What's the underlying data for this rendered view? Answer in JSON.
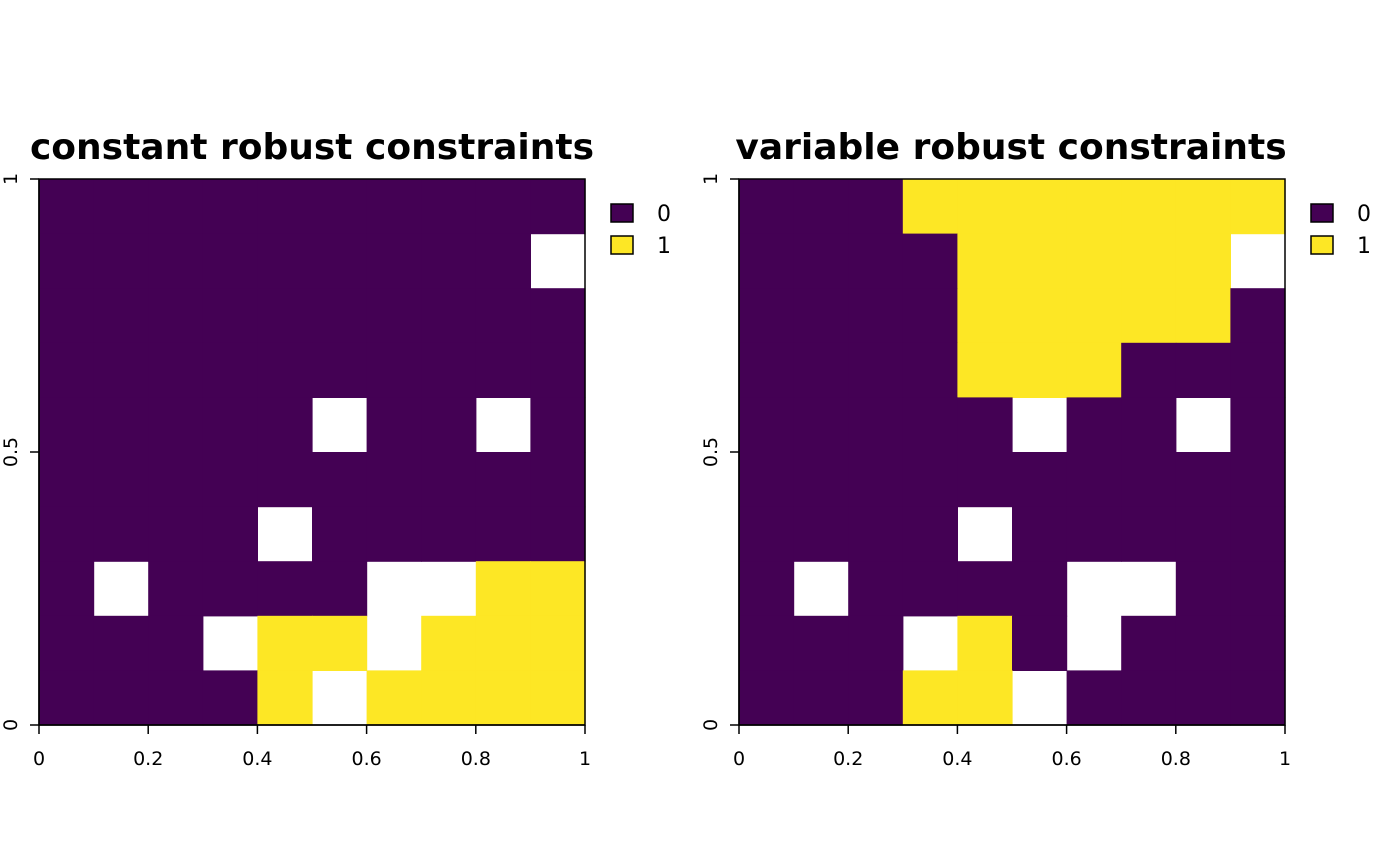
{
  "chart_data": [
    {
      "type": "heatmap",
      "title": "constant robust constraints",
      "xlim": [
        0,
        1
      ],
      "ylim": [
        0,
        1
      ],
      "x_ticks": [
        "0",
        "0.2",
        "0.4",
        "0.6",
        "0.8",
        "1"
      ],
      "y_ticks": [
        "0",
        "0.5",
        "1"
      ],
      "cell_size": 0.1,
      "legend": {
        "placement": "right",
        "entries": [
          {
            "label": "0",
            "color": "#440154"
          },
          {
            "label": "1",
            "color": "#FDE725"
          }
        ]
      },
      "rows_top_to_bottom": [
        [
          0,
          0,
          0,
          0,
          0,
          0,
          0,
          0,
          0,
          0
        ],
        [
          0,
          0,
          0,
          0,
          0,
          0,
          0,
          0,
          0,
          null
        ],
        [
          0,
          0,
          0,
          0,
          0,
          0,
          0,
          0,
          0,
          0
        ],
        [
          0,
          0,
          0,
          0,
          0,
          0,
          0,
          0,
          0,
          0
        ],
        [
          0,
          0,
          0,
          0,
          0,
          null,
          0,
          0,
          null,
          0
        ],
        [
          0,
          0,
          0,
          0,
          0,
          0,
          0,
          0,
          0,
          0
        ],
        [
          0,
          0,
          0,
          0,
          null,
          0,
          0,
          0,
          0,
          0
        ],
        [
          0,
          null,
          0,
          0,
          0,
          0,
          null,
          null,
          1,
          1
        ],
        [
          0,
          0,
          0,
          null,
          1,
          1,
          null,
          1,
          1,
          1
        ],
        [
          0,
          0,
          0,
          0,
          1,
          null,
          1,
          1,
          1,
          1
        ]
      ]
    },
    {
      "type": "heatmap",
      "title": "variable robust constraints",
      "xlim": [
        0,
        1
      ],
      "ylim": [
        0,
        1
      ],
      "x_ticks": [
        "0",
        "0.2",
        "0.4",
        "0.6",
        "0.8",
        "1"
      ],
      "y_ticks": [
        "0",
        "0.5",
        "1"
      ],
      "cell_size": 0.1,
      "legend": {
        "placement": "right",
        "entries": [
          {
            "label": "0",
            "color": "#440154"
          },
          {
            "label": "1",
            "color": "#FDE725"
          }
        ]
      },
      "rows_top_to_bottom": [
        [
          0,
          0,
          0,
          1,
          1,
          1,
          1,
          1,
          1,
          1
        ],
        [
          0,
          0,
          0,
          0,
          1,
          1,
          1,
          1,
          1,
          null
        ],
        [
          0,
          0,
          0,
          0,
          1,
          1,
          1,
          1,
          1,
          0
        ],
        [
          0,
          0,
          0,
          0,
          1,
          1,
          1,
          0,
          0,
          0
        ],
        [
          0,
          0,
          0,
          0,
          0,
          null,
          0,
          0,
          null,
          0
        ],
        [
          0,
          0,
          0,
          0,
          0,
          0,
          0,
          0,
          0,
          0
        ],
        [
          0,
          0,
          0,
          0,
          null,
          0,
          0,
          0,
          0,
          0
        ],
        [
          0,
          null,
          0,
          0,
          0,
          0,
          null,
          null,
          0,
          0
        ],
        [
          0,
          0,
          0,
          null,
          1,
          0,
          null,
          0,
          0,
          0
        ],
        [
          0,
          0,
          0,
          1,
          1,
          null,
          0,
          0,
          0,
          0
        ]
      ]
    }
  ]
}
